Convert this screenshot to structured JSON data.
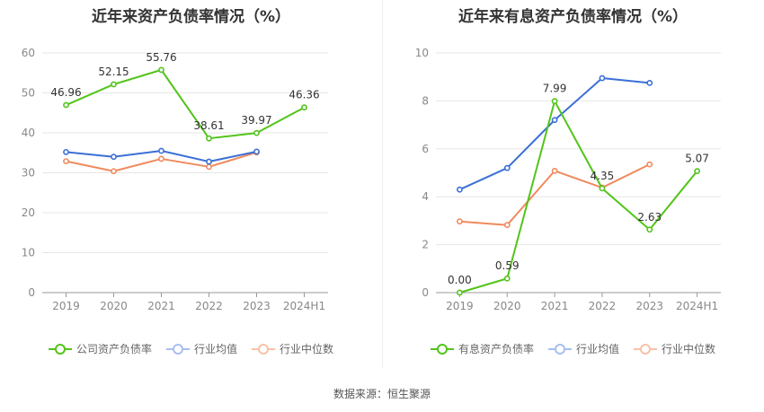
{
  "source": "数据来源：恒生聚源",
  "colors": {
    "company": "#52c41a",
    "avg": "#3b6fd6",
    "median": "#f08a5d"
  },
  "chart_data": [
    {
      "type": "line",
      "title": "近年来资产负债率情况（%）",
      "categories": [
        "2019",
        "2020",
        "2021",
        "2022",
        "2023",
        "2024H1"
      ],
      "ylim": [
        0,
        60
      ],
      "yticks": [
        0,
        10,
        20,
        30,
        40,
        50,
        60
      ],
      "grid": true,
      "legend_position": "bottom",
      "series": [
        {
          "name": "公司资产负债率",
          "color": "#52c41a",
          "values": [
            46.96,
            52.15,
            55.76,
            38.61,
            39.97,
            46.36
          ],
          "labels": [
            "46.96",
            "52.15",
            "55.76",
            "38.61",
            "39.97",
            "46.36"
          ]
        },
        {
          "name": "行业均值",
          "color": "#3b6fd6",
          "values": [
            35.2,
            34.0,
            35.5,
            32.8,
            35.3,
            null
          ]
        },
        {
          "name": "行业中位数",
          "color": "#f08a5d",
          "values": [
            32.9,
            30.4,
            33.5,
            31.5,
            35.1,
            null
          ]
        }
      ]
    },
    {
      "type": "line",
      "title": "近年来有息资产负债率情况（%）",
      "categories": [
        "2019",
        "2020",
        "2021",
        "2022",
        "2023",
        "2024H1"
      ],
      "ylim": [
        0,
        10
      ],
      "yticks": [
        0,
        2,
        4,
        6,
        8,
        10
      ],
      "grid": true,
      "legend_position": "bottom",
      "series": [
        {
          "name": "有息资产负债率",
          "color": "#52c41a",
          "values": [
            0.0,
            0.59,
            7.99,
            4.35,
            2.63,
            5.07
          ],
          "labels": [
            "0.00",
            "0.59",
            "7.99",
            "4.35",
            "2.63",
            "5.07"
          ]
        },
        {
          "name": "行业均值",
          "color": "#3b6fd6",
          "values": [
            4.3,
            5.2,
            7.2,
            8.95,
            8.75,
            null
          ]
        },
        {
          "name": "行业中位数",
          "color": "#f08a5d",
          "values": [
            2.97,
            2.82,
            5.08,
            4.38,
            5.35,
            null
          ]
        }
      ]
    }
  ]
}
